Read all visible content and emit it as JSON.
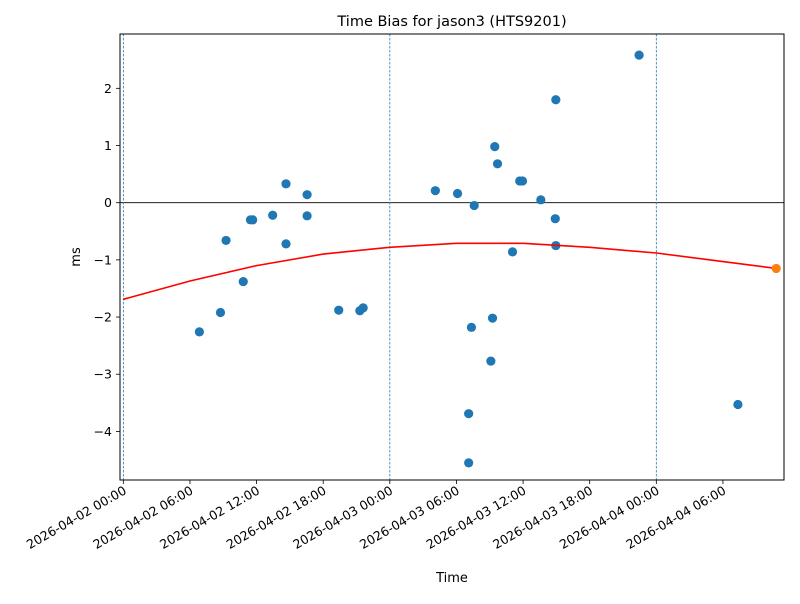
{
  "chart_data": {
    "type": "scatter",
    "title": "Time Bias for jason3 (HTS9201)",
    "xlabel": "Time",
    "ylabel": "ms",
    "x_axis_type": "datetime",
    "x_range": [
      "2026-04-01T23:42:00",
      "2026-04-04T11:30:00"
    ],
    "ylim": [
      -4.85,
      2.95
    ],
    "grid": false,
    "x_ticks": [
      {
        "value": "2026-04-02T00:00:00",
        "label": "2026-04-02 00:00"
      },
      {
        "value": "2026-04-02T06:00:00",
        "label": "2026-04-02 06:00"
      },
      {
        "value": "2026-04-02T12:00:00",
        "label": "2026-04-02 12:00"
      },
      {
        "value": "2026-04-02T18:00:00",
        "label": "2026-04-02 18:00"
      },
      {
        "value": "2026-04-03T00:00:00",
        "label": "2026-04-03 00:00"
      },
      {
        "value": "2026-04-03T06:00:00",
        "label": "2026-04-03 06:00"
      },
      {
        "value": "2026-04-03T12:00:00",
        "label": "2026-04-03 12:00"
      },
      {
        "value": "2026-04-03T18:00:00",
        "label": "2026-04-03 18:00"
      },
      {
        "value": "2026-04-04T00:00:00",
        "label": "2026-04-04 00:00"
      },
      {
        "value": "2026-04-04T06:00:00",
        "label": "2026-04-04 06:00"
      }
    ],
    "y_ticks": [
      {
        "value": 2,
        "label": "2"
      },
      {
        "value": 1,
        "label": "1"
      },
      {
        "value": 0,
        "label": "0"
      },
      {
        "value": -1,
        "label": "−1"
      },
      {
        "value": -2,
        "label": "−2"
      },
      {
        "value": -3,
        "label": "−3"
      },
      {
        "value": -4,
        "label": "−4"
      }
    ],
    "vertical_lines": [
      "2026-04-02T00:00:00",
      "2026-04-03T00:00:00",
      "2026-04-04T00:00:00"
    ],
    "horizontal_lines": [
      0
    ],
    "series": [
      {
        "kind": "scatter",
        "color": "#1f77b4",
        "points": [
          {
            "x": "2026-04-02T06:51:00",
            "y": -2.26
          },
          {
            "x": "2026-04-02T08:45:00",
            "y": -1.92
          },
          {
            "x": "2026-04-02T09:15:00",
            "y": -0.66
          },
          {
            "x": "2026-04-02T10:48:00",
            "y": -1.38
          },
          {
            "x": "2026-04-02T11:27:00",
            "y": -0.3
          },
          {
            "x": "2026-04-02T11:39:00",
            "y": -0.3
          },
          {
            "x": "2026-04-02T13:27:00",
            "y": -0.22
          },
          {
            "x": "2026-04-02T14:39:00",
            "y": 0.33
          },
          {
            "x": "2026-04-02T14:39:00",
            "y": -0.72
          },
          {
            "x": "2026-04-02T16:33:00",
            "y": 0.14
          },
          {
            "x": "2026-04-02T16:33:00",
            "y": -0.23
          },
          {
            "x": "2026-04-02T19:24:00",
            "y": -1.88
          },
          {
            "x": "2026-04-02T21:18:00",
            "y": -1.89
          },
          {
            "x": "2026-04-02T21:36:00",
            "y": -1.84
          },
          {
            "x": "2026-04-03T04:06:00",
            "y": 0.21
          },
          {
            "x": "2026-04-03T06:06:00",
            "y": 0.16
          },
          {
            "x": "2026-04-03T07:06:00",
            "y": -3.69
          },
          {
            "x": "2026-04-03T07:06:00",
            "y": -4.55
          },
          {
            "x": "2026-04-03T07:21:00",
            "y": -2.18
          },
          {
            "x": "2026-04-03T07:36:00",
            "y": -0.05
          },
          {
            "x": "2026-04-03T09:06:00",
            "y": -2.77
          },
          {
            "x": "2026-04-03T09:15:00",
            "y": -2.02
          },
          {
            "x": "2026-04-03T09:27:00",
            "y": 0.98
          },
          {
            "x": "2026-04-03T09:42:00",
            "y": 0.68
          },
          {
            "x": "2026-04-03T11:03:00",
            "y": -0.86
          },
          {
            "x": "2026-04-03T11:42:00",
            "y": 0.38
          },
          {
            "x": "2026-04-03T11:57:00",
            "y": 0.38
          },
          {
            "x": "2026-04-03T13:36:00",
            "y": 0.05
          },
          {
            "x": "2026-04-03T14:54:00",
            "y": -0.28
          },
          {
            "x": "2026-04-03T14:57:00",
            "y": 1.8
          },
          {
            "x": "2026-04-03T14:57:00",
            "y": -0.75
          },
          {
            "x": "2026-04-03T22:27:00",
            "y": 2.58
          },
          {
            "x": "2026-04-04T07:21:00",
            "y": -3.53
          }
        ]
      },
      {
        "kind": "line",
        "color": "#ff0000",
        "points": [
          {
            "x": "2026-04-02T00:00:00",
            "y": -1.69
          },
          {
            "x": "2026-04-02T06:00:00",
            "y": -1.37
          },
          {
            "x": "2026-04-02T12:00:00",
            "y": -1.1
          },
          {
            "x": "2026-04-02T18:00:00",
            "y": -0.9
          },
          {
            "x": "2026-04-03T00:00:00",
            "y": -0.78
          },
          {
            "x": "2026-04-03T06:00:00",
            "y": -0.71
          },
          {
            "x": "2026-04-03T12:00:00",
            "y": -0.71
          },
          {
            "x": "2026-04-03T18:00:00",
            "y": -0.78
          },
          {
            "x": "2026-04-04T00:00:00",
            "y": -0.88
          },
          {
            "x": "2026-04-04T06:00:00",
            "y": -1.03
          },
          {
            "x": "2026-04-04T10:48:00",
            "y": -1.15
          }
        ]
      },
      {
        "kind": "scatter",
        "color": "#ff7f0e",
        "points": [
          {
            "x": "2026-04-04T10:48:00",
            "y": -1.15
          }
        ]
      }
    ]
  }
}
